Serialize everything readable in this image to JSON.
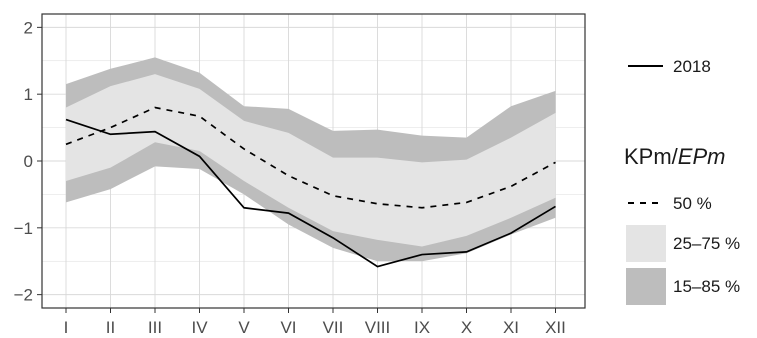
{
  "chart_data": {
    "type": "area",
    "categories": [
      "I",
      "II",
      "III",
      "IV",
      "V",
      "VI",
      "VII",
      "VIII",
      "IX",
      "X",
      "XI",
      "XII"
    ],
    "yticks": [
      "-2",
      "-1",
      "0",
      "1",
      "2"
    ],
    "ylim": [
      -2.2,
      2.2
    ],
    "grid": true,
    "legend_position": "right",
    "legend_title_main": "KPm/",
    "legend_title_ital": "EPm",
    "bands": [
      {
        "name": "15–85 %",
        "color": "#bdbdbd",
        "lower": [
          -0.62,
          -0.42,
          -0.08,
          -0.12,
          -0.5,
          -0.95,
          -1.3,
          -1.5,
          -1.5,
          -1.38,
          -1.1,
          -0.85
        ],
        "upper": [
          1.15,
          1.38,
          1.55,
          1.32,
          0.82,
          0.78,
          0.45,
          0.47,
          0.38,
          0.35,
          0.82,
          1.05
        ]
      },
      {
        "name": "25–75 %",
        "color": "#e4e4e4",
        "lower": [
          -0.3,
          -0.1,
          0.28,
          0.15,
          -0.3,
          -0.7,
          -1.05,
          -1.18,
          -1.28,
          -1.12,
          -0.85,
          -0.55
        ],
        "upper": [
          0.8,
          1.12,
          1.3,
          1.08,
          0.6,
          0.42,
          0.05,
          0.05,
          -0.02,
          0.02,
          0.35,
          0.72
        ]
      }
    ],
    "series": [
      {
        "name": "50 %",
        "dash": true,
        "values": [
          0.25,
          0.5,
          0.8,
          0.67,
          0.18,
          -0.22,
          -0.52,
          -0.64,
          -0.7,
          -0.62,
          -0.38,
          -0.02
        ]
      },
      {
        "name": "2018",
        "dash": false,
        "values": [
          0.62,
          0.4,
          0.44,
          0.07,
          -0.7,
          -0.78,
          -1.15,
          -1.58,
          -1.4,
          -1.36,
          -1.08,
          -0.68
        ]
      }
    ]
  }
}
